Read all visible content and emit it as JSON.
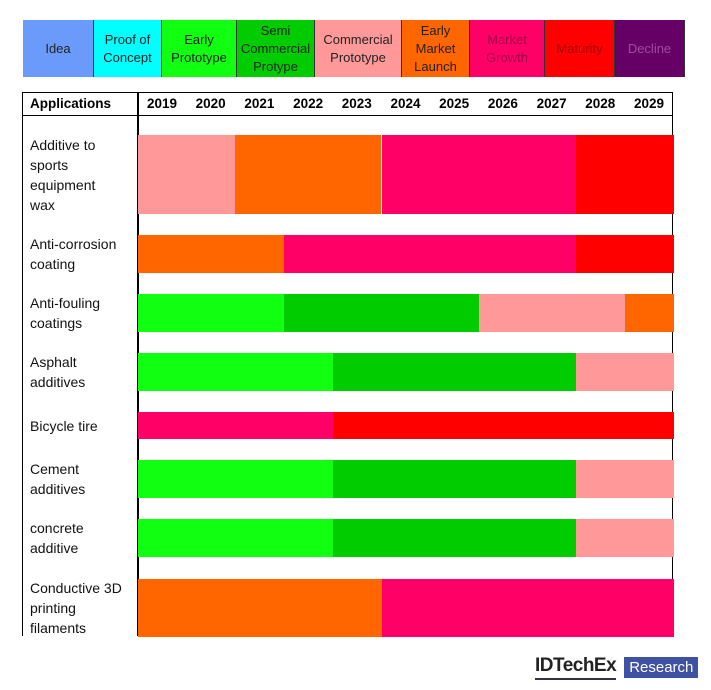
{
  "chart_data": {
    "type": "table",
    "title": "",
    "stages": [
      {
        "label": "Idea",
        "color": "#6b9bfa"
      },
      {
        "label": "Proof of Concept",
        "color": "#00ffff"
      },
      {
        "label": "Early Prototype",
        "color": "#11ff11"
      },
      {
        "label": "Semi Commercial Protype",
        "color": "#00cc00"
      },
      {
        "label": "Commercial Prototype",
        "color": "#ff9999"
      },
      {
        "label": "Early Market Launch",
        "color": "#ff6600"
      },
      {
        "label": "Market Growth",
        "color": "#ff0066"
      },
      {
        "label": "Maturity",
        "color": "#ff0000"
      },
      {
        "label": "Decline",
        "color": "#660066"
      }
    ],
    "header": "Applications",
    "years": [
      "2019",
      "2020",
      "2021",
      "2022",
      "2023",
      "2024",
      "2025",
      "2026",
      "2027",
      "2028",
      "2029"
    ],
    "rows": [
      {
        "label": "Additive to sports equipment wax",
        "segments": [
          {
            "stage": 4,
            "from": 2019,
            "to": 2021
          },
          {
            "stage": 5,
            "from": 2021,
            "to": 2024
          },
          {
            "stage": 6,
            "from": 2024,
            "to": 2028
          },
          {
            "stage": 7,
            "from": 2028,
            "to": 2030
          }
        ]
      },
      {
        "label": "Anti-corrosion coating",
        "segments": [
          {
            "stage": 5,
            "from": 2019,
            "to": 2022
          },
          {
            "stage": 6,
            "from": 2022,
            "to": 2028
          },
          {
            "stage": 7,
            "from": 2028,
            "to": 2030
          }
        ]
      },
      {
        "label": "Anti-fouling coatings",
        "segments": [
          {
            "stage": 2,
            "from": 2019,
            "to": 2022
          },
          {
            "stage": 3,
            "from": 2022,
            "to": 2026
          },
          {
            "stage": 4,
            "from": 2026,
            "to": 2029
          },
          {
            "stage": 5,
            "from": 2029,
            "to": 2030
          }
        ]
      },
      {
        "label": "Asphalt additives",
        "segments": [
          {
            "stage": 2,
            "from": 2019,
            "to": 2023
          },
          {
            "stage": 3,
            "from": 2023,
            "to": 2028
          },
          {
            "stage": 4,
            "from": 2028,
            "to": 2030
          }
        ]
      },
      {
        "label": "Bicycle tire",
        "segments": [
          {
            "stage": 6,
            "from": 2019,
            "to": 2023
          },
          {
            "stage": 7,
            "from": 2023,
            "to": 2030
          }
        ]
      },
      {
        "label": "Cement additives",
        "segments": [
          {
            "stage": 2,
            "from": 2019,
            "to": 2023
          },
          {
            "stage": 3,
            "from": 2023,
            "to": 2028
          },
          {
            "stage": 4,
            "from": 2028,
            "to": 2030
          }
        ]
      },
      {
        "label": "concrete additive",
        "segments": [
          {
            "stage": 2,
            "from": 2019,
            "to": 2023
          },
          {
            "stage": 3,
            "from": 2023,
            "to": 2028
          },
          {
            "stage": 4,
            "from": 2028,
            "to": 2030
          }
        ]
      },
      {
        "label": "Conductive 3D printing filaments",
        "segments": [
          {
            "stage": 5,
            "from": 2019,
            "to": 2024
          },
          {
            "stage": 6,
            "from": 2024,
            "to": 2030
          }
        ]
      }
    ]
  },
  "logo": {
    "name": "IDTechEx",
    "tag": "Research"
  }
}
